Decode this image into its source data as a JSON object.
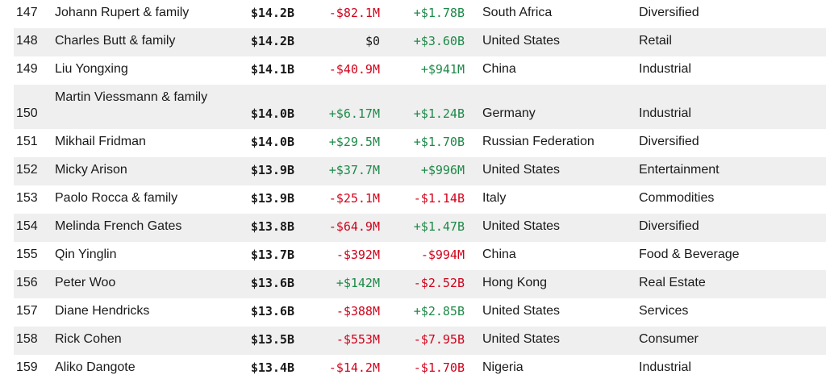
{
  "colors": {
    "negative": "#d0021b",
    "positive": "#1d8a48",
    "stripe": "#efefef"
  },
  "rows": [
    {
      "rank": "147",
      "name": "Johann Rupert & family",
      "worth": "$14.2B",
      "last_change": "-$82.1M",
      "ytd_change": "+$1.78B",
      "country": "South Africa",
      "industry": "Diversified"
    },
    {
      "rank": "148",
      "name": "Charles Butt & family",
      "worth": "$14.2B",
      "last_change": "$0",
      "ytd_change": "+$3.60B",
      "country": "United States",
      "industry": "Retail"
    },
    {
      "rank": "149",
      "name": "Liu Yongxing",
      "worth": "$14.1B",
      "last_change": "-$40.9M",
      "ytd_change": "+$941M",
      "country": "China",
      "industry": "Industrial"
    },
    {
      "rank": "150",
      "name": "Martin Viessmann & family",
      "worth": "$14.0B",
      "last_change": "+$6.17M",
      "ytd_change": "+$1.24B",
      "country": "Germany",
      "industry": "Industrial"
    },
    {
      "rank": "151",
      "name": "Mikhail Fridman",
      "worth": "$14.0B",
      "last_change": "+$29.5M",
      "ytd_change": "+$1.70B",
      "country": "Russian Federation",
      "industry": "Diversified"
    },
    {
      "rank": "152",
      "name": "Micky Arison",
      "worth": "$13.9B",
      "last_change": "+$37.7M",
      "ytd_change": "+$996M",
      "country": "United States",
      "industry": "Entertainment"
    },
    {
      "rank": "153",
      "name": "Paolo Rocca & family",
      "worth": "$13.9B",
      "last_change": "-$25.1M",
      "ytd_change": "-$1.14B",
      "country": "Italy",
      "industry": "Commodities"
    },
    {
      "rank": "154",
      "name": "Melinda French Gates",
      "worth": "$13.8B",
      "last_change": "-$64.9M",
      "ytd_change": "+$1.47B",
      "country": "United States",
      "industry": "Diversified"
    },
    {
      "rank": "155",
      "name": "Qin Yinglin",
      "worth": "$13.7B",
      "last_change": "-$392M",
      "ytd_change": "-$994M",
      "country": "China",
      "industry": "Food & Beverage"
    },
    {
      "rank": "156",
      "name": "Peter Woo",
      "worth": "$13.6B",
      "last_change": "+$142M",
      "ytd_change": "-$2.52B",
      "country": "Hong Kong",
      "industry": "Real Estate"
    },
    {
      "rank": "157",
      "name": "Diane Hendricks",
      "worth": "$13.6B",
      "last_change": "-$388M",
      "ytd_change": "+$2.85B",
      "country": "United States",
      "industry": "Services"
    },
    {
      "rank": "158",
      "name": "Rick Cohen",
      "worth": "$13.5B",
      "last_change": "-$553M",
      "ytd_change": "-$7.95B",
      "country": "United States",
      "industry": "Consumer"
    },
    {
      "rank": "159",
      "name": "Aliko Dangote",
      "worth": "$13.4B",
      "last_change": "-$14.2M",
      "ytd_change": "-$1.70B",
      "country": "Nigeria",
      "industry": "Industrial"
    }
  ]
}
